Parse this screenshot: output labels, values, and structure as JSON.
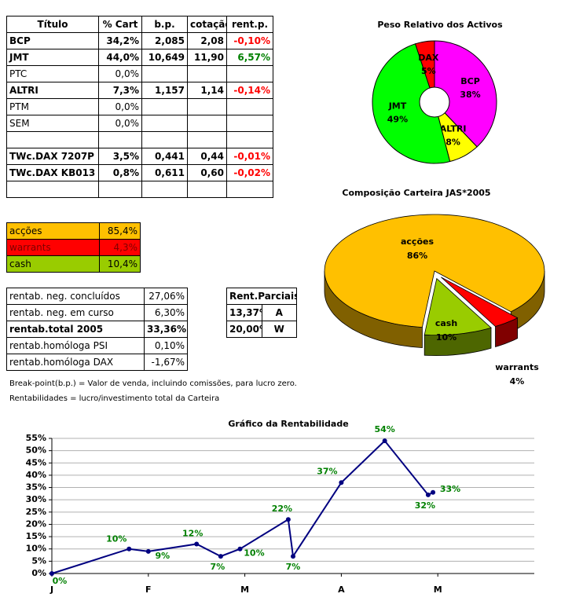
{
  "holdings": {
    "header": [
      "Título",
      "% Cart",
      "b.p.",
      "cotação",
      "rent.p."
    ],
    "rows": [
      [
        "BCP",
        "34,2%",
        "2,085",
        "2,08",
        "-0,10%"
      ],
      [
        "JMT",
        "44,0%",
        "10,649",
        "11,90",
        "6,57%"
      ],
      [
        "PTC",
        "0,0%"
      ],
      [
        "ALTRI",
        "7,3%",
        "1,157",
        "1,14",
        "-0,14%"
      ],
      [
        "PTM",
        "0,0%"
      ],
      [
        "SEM",
        "0,0%"
      ],
      [
        "TWc.DAX 7207P",
        "3,5%",
        "0,441",
        "0,44",
        "-0,01%"
      ],
      [
        "TWc.DAX KB013",
        "0,8%",
        "0,611",
        "0,60",
        "-0,02%"
      ]
    ]
  },
  "allocation": {
    "rows": [
      [
        "acções",
        "85,4%"
      ],
      [
        "warrants",
        "4,3%"
      ],
      [
        "cash",
        "10,4%"
      ]
    ]
  },
  "returns": {
    "rows": [
      [
        "rentab. neg. concluídos",
        "27,06%"
      ],
      [
        "rentab. neg. em curso",
        "6,30%"
      ],
      [
        "rentab.total 2005",
        "33,36%"
      ],
      [
        "rentab.homóloga PSI",
        "0,10%"
      ],
      [
        "rentab.homóloga DAX",
        "-1,67%"
      ]
    ]
  },
  "partial_returns": {
    "header": "Rent.Parciais",
    "rows": [
      [
        "13,37%",
        "A"
      ],
      [
        "20,00%",
        "W"
      ]
    ]
  },
  "notes": [
    "Break-point(b.p.) = Valor de venda, incluindo comissões, para lucro zero.",
    "Rentabilidades = lucro/investimento total da Carteira"
  ],
  "chart_data": [
    {
      "type": "donut",
      "title": "Peso Relativo dos Activos",
      "categories": [
        "BCP",
        "ALTRI",
        "JMT",
        "DAX"
      ],
      "values": [
        38,
        8,
        49,
        5
      ],
      "value_labels": [
        "38%",
        "8%",
        "49%",
        "5%"
      ],
      "colors": [
        "#ff00ff",
        "#ffff00",
        "#00ff00",
        "#ff0000"
      ]
    },
    {
      "type": "pie",
      "title": "Composição Carteira JAS*2005",
      "categories": [
        "acções",
        "warrants",
        "cash"
      ],
      "values": [
        86,
        4,
        10
      ],
      "value_labels": [
        "86%",
        "4%",
        "10%"
      ],
      "colors": [
        "#ffc000",
        "#ff0000",
        "#99cc00"
      ]
    },
    {
      "type": "line",
      "title": "Gráfico da Rentabilidade",
      "x": [
        0,
        0.8,
        1,
        1.5,
        1.75,
        1.95,
        2.45,
        2.5,
        3,
        3.45,
        3.9,
        3.95
      ],
      "values": [
        0,
        10,
        9,
        12,
        7,
        10,
        22,
        7,
        37,
        54,
        32,
        33
      ],
      "value_labels": [
        "0%",
        "10%",
        "9%",
        "12%",
        "7%",
        "10%",
        "22%",
        "7%",
        "37%",
        "54%",
        "32%",
        "33%"
      ],
      "color": "#000080",
      "label_color": "#008000",
      "xlim": [
        0,
        5
      ],
      "xticks": [
        {
          "value": 0,
          "label": "J"
        },
        {
          "value": 1,
          "label": "F"
        },
        {
          "value": 2,
          "label": "M"
        },
        {
          "value": 3,
          "label": "A"
        },
        {
          "value": 4,
          "label": "M"
        }
      ],
      "ylim": [
        0,
        55
      ],
      "yticks": [
        {
          "value": 0,
          "label": "0%"
        },
        {
          "value": 5,
          "label": "5%"
        },
        {
          "value": 10,
          "label": "10%"
        },
        {
          "value": 15,
          "label": "15%"
        },
        {
          "value": 20,
          "label": "20%"
        },
        {
          "value": 25,
          "label": "25%"
        },
        {
          "value": 30,
          "label": "30%"
        },
        {
          "value": 35,
          "label": "35%"
        },
        {
          "value": 40,
          "label": "40%"
        },
        {
          "value": 45,
          "label": "45%"
        },
        {
          "value": 50,
          "label": "50%"
        },
        {
          "value": 55,
          "label": "55%"
        }
      ],
      "grid": true
    }
  ]
}
